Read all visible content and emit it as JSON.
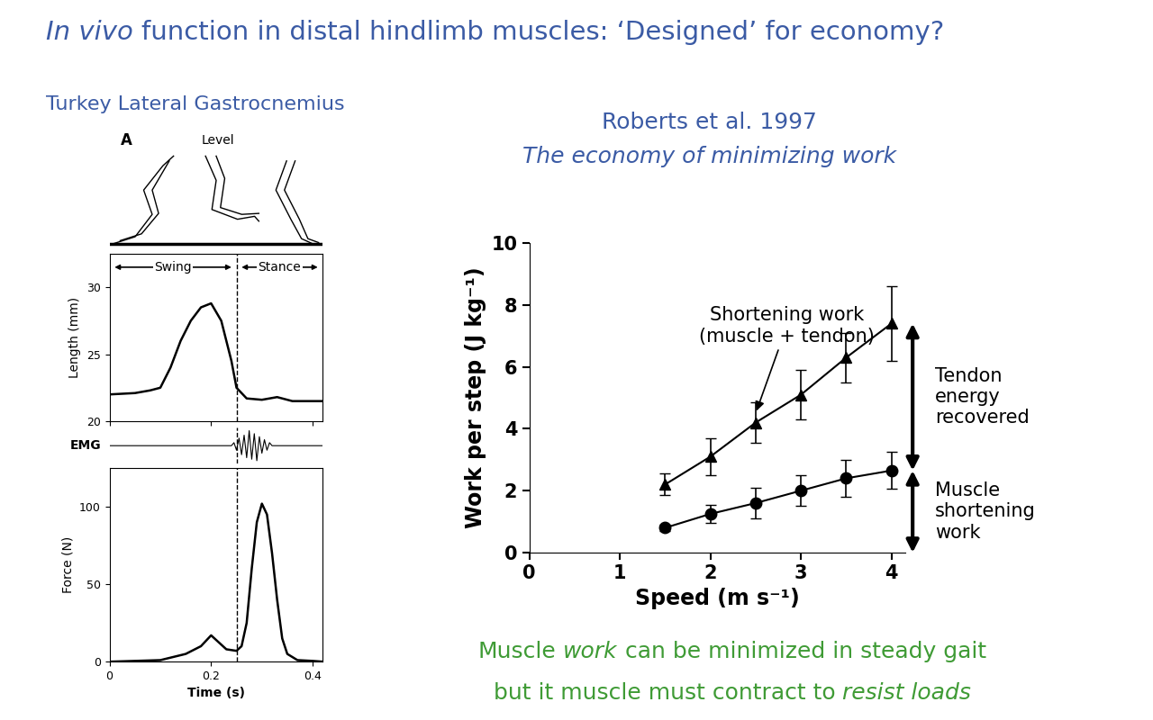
{
  "slide": {
    "title": [
      {
        "text": "In vivo",
        "italic": true
      },
      {
        "text": "function in distal hindlimb muscles: ‘Designed’ for economy?",
        "italic": false
      }
    ],
    "subtitle": "Turkey Lateral Gastrocnemius",
    "panel_label": "A",
    "condition": "Level",
    "caption": [
      [
        {
          "text": "Muscle",
          "italic": false
        },
        {
          "text": "work",
          "italic": true
        },
        {
          "text": "can be minimized in steady gait",
          "italic": false
        }
      ],
      [
        {
          "text": "but it muscle must contract to",
          "italic": false
        },
        {
          "text": "resist loads",
          "italic": true
        }
      ]
    ]
  },
  "chart_data": [
    {
      "type": "line",
      "ylabel": "Length (mm)",
      "x": [
        0,
        0.05,
        0.08,
        0.1,
        0.12,
        0.14,
        0.16,
        0.18,
        0.2,
        0.22,
        0.24,
        0.25,
        0.27,
        0.3,
        0.33,
        0.36,
        0.4,
        0.42
      ],
      "values": [
        22,
        22.1,
        22.3,
        22.5,
        24,
        26,
        27.5,
        28.5,
        28.8,
        27.5,
        24.5,
        22.5,
        21.7,
        21.6,
        21.8,
        21.5,
        21.5,
        21.5
      ],
      "color": "#000000",
      "xlim": [
        0,
        0.42
      ],
      "xticks": [
        0,
        0.2,
        0.4
      ],
      "ylim": [
        20,
        32.5
      ],
      "yticks": [
        20,
        25,
        30
      ],
      "tick_labels": "y",
      "phase_boundary": 0.25,
      "annotations": [
        {
          "text": "Swing",
          "x": [
            0.005,
            0.245
          ]
        },
        {
          "text": "Stance",
          "x": [
            0.255,
            0.415
          ]
        }
      ]
    },
    {
      "type": "line",
      "ylabel": "EMG",
      "x": [
        0,
        0.24,
        0.245,
        0.25,
        0.255,
        0.26,
        0.265,
        0.27,
        0.275,
        0.28,
        0.285,
        0.29,
        0.295,
        0.3,
        0.305,
        0.31,
        0.315,
        0.32,
        0.42
      ],
      "values": [
        0,
        0,
        0.2,
        -0.3,
        0.5,
        -0.6,
        0.7,
        -0.8,
        1.0,
        -0.9,
        0.8,
        -1.0,
        0.6,
        -0.5,
        0.4,
        -0.3,
        0.2,
        0,
        0
      ],
      "color": "#000000",
      "xlim": [
        0,
        0.42
      ],
      "ylim": [
        -1.2,
        1.2
      ],
      "tick_labels": false,
      "phase_boundary": 0.25
    },
    {
      "type": "line",
      "xlabel": "Time (s)",
      "ylabel": "Force (N)",
      "x": [
        0,
        0.1,
        0.15,
        0.18,
        0.2,
        0.21,
        0.23,
        0.25,
        0.26,
        0.27,
        0.28,
        0.29,
        0.3,
        0.31,
        0.32,
        0.33,
        0.34,
        0.35,
        0.37,
        0.4,
        0.42
      ],
      "values": [
        0,
        1,
        5,
        10,
        17,
        14,
        8,
        7,
        10,
        25,
        60,
        90,
        102,
        95,
        70,
        40,
        15,
        5,
        1,
        0.5,
        0
      ],
      "color": "#000000",
      "xlim": [
        0,
        0.42
      ],
      "xticks": [
        0,
        0.2,
        0.4
      ],
      "ylim": [
        0,
        125
      ],
      "yticks": [
        0,
        50,
        100
      ],
      "phase_boundary": 0.25
    },
    {
      "type": "line",
      "title": "Roberts et al. 1997",
      "subtitle": "The economy of minimizing work",
      "xlabel": "Speed (m s⁻¹)",
      "ylabel": "Work per step (J kg⁻¹)",
      "x": [
        1.5,
        2,
        2.5,
        3,
        3.5,
        4
      ],
      "series": [
        {
          "values": [
            2.2,
            3.1,
            4.2,
            5.1,
            6.3,
            7.4
          ],
          "error": [
            0.35,
            0.6,
            0.65,
            0.8,
            0.8,
            1.2
          ],
          "marker": "triangle",
          "color": "#000000"
        },
        {
          "values": [
            0.8,
            1.25,
            1.6,
            2.0,
            2.4,
            2.65
          ],
          "error": [
            0.1,
            0.3,
            0.5,
            0.5,
            0.6,
            0.6
          ],
          "marker": "circle",
          "color": "#000000"
        }
      ],
      "xlim": [
        0,
        4.15
      ],
      "xticks": [
        0,
        1,
        2,
        3,
        4
      ],
      "ylim": [
        0,
        10
      ],
      "yticks": [
        0,
        2,
        4,
        6,
        8,
        10
      ],
      "annotations": [
        {
          "text": "Shortening work\n(muscle + tendon)",
          "x": 2.5,
          "y": 4.5
        },
        {
          "text": "Tendon\nenergy\nrecovered"
        },
        {
          "text": "Muscle\nshortening\nwork"
        }
      ]
    }
  ]
}
